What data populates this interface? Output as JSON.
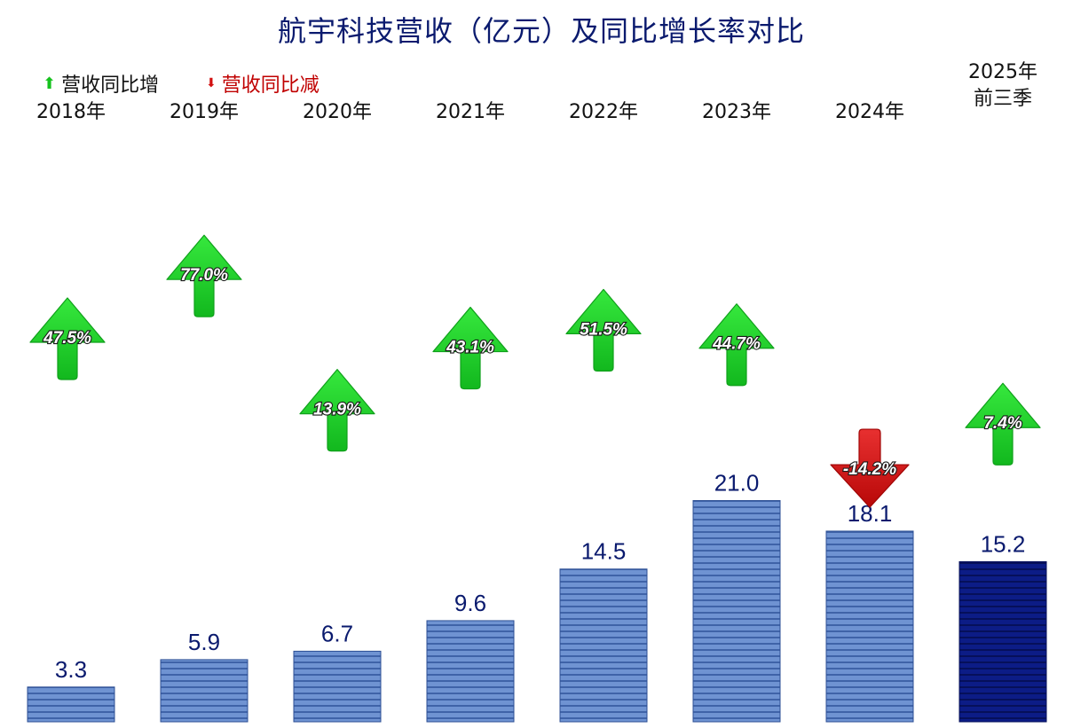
{
  "title": "航宇科技营收（亿元）及同比增长率对比",
  "legend": {
    "up_label": "营收同比增",
    "down_label": "营收同比减"
  },
  "colors": {
    "title": "#0a1a6e",
    "bar": "#5b82c8",
    "bar_highlight": "#0b1a7a",
    "value_text": "#0a1a6e",
    "arrow_up": "#1bd32a",
    "arrow_down": "#d40f0f"
  },
  "chart_data": {
    "type": "bar",
    "categories": [
      "2018年",
      "2019年",
      "2020年",
      "2021年",
      "2022年",
      "2023年",
      "2024年",
      "2025年\n前三季"
    ],
    "series": [
      {
        "name": "营收",
        "values": [
          3.3,
          5.9,
          6.7,
          9.6,
          14.5,
          21.0,
          18.1,
          15.2
        ]
      },
      {
        "name": "同比增长率",
        "values": [
          47.5,
          77.0,
          13.9,
          43.1,
          51.5,
          44.7,
          -14.2,
          7.4
        ]
      }
    ],
    "revenue_labels": [
      "3.3",
      "5.9",
      "6.7",
      "9.6",
      "14.5",
      "21.0",
      "18.1",
      "15.2"
    ],
    "growth_labels": [
      "47.5%",
      "77.0%",
      "13.9%",
      "43.1%",
      "51.5%",
      "44.7%",
      "-14.2%",
      "7.4%"
    ],
    "highlight_index": 7
  }
}
